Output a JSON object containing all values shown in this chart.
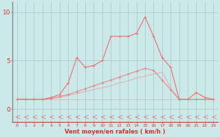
{
  "x_labels": [
    0,
    1,
    2,
    3,
    4,
    5,
    6,
    7,
    8,
    9,
    10,
    11,
    12,
    13,
    14,
    15,
    16,
    17,
    18,
    19,
    20,
    21,
    22,
    23
  ],
  "line1_y": [
    1.0,
    1.0,
    1.0,
    1.0,
    1.0,
    1.0,
    1.0,
    1.0,
    1.0,
    1.0,
    1.0,
    1.0,
    1.0,
    1.0,
    1.0,
    1.0,
    1.0,
    1.0,
    1.0,
    1.0,
    1.0,
    1.0,
    1.0,
    1.0
  ],
  "line2_y": [
    1.0,
    1.0,
    1.0,
    1.0,
    1.1,
    1.2,
    1.4,
    1.6,
    1.8,
    2.0,
    2.2,
    2.4,
    2.7,
    2.9,
    3.2,
    3.4,
    3.6,
    3.8,
    2.2,
    1.0,
    1.0,
    1.0,
    1.0,
    1.0
  ],
  "line3_y": [
    1.0,
    1.0,
    1.0,
    1.0,
    1.1,
    1.3,
    1.5,
    1.8,
    2.1,
    2.4,
    2.7,
    3.0,
    3.3,
    3.6,
    3.9,
    4.2,
    4.0,
    3.0,
    2.0,
    1.0,
    1.0,
    1.0,
    1.0,
    1.0
  ],
  "line4_y": [
    1.0,
    1.0,
    1.0,
    1.0,
    1.2,
    1.5,
    2.7,
    5.3,
    4.3,
    4.5,
    5.0,
    7.5,
    7.5,
    7.5,
    7.8,
    9.5,
    7.5,
    5.3,
    4.3,
    1.0,
    1.0,
    1.7,
    1.2,
    1.0
  ],
  "background_color": "#cce8e8",
  "grid_color": "#aacccc",
  "line_color": "#e87878",
  "line_color_light": "#e8a0a0",
  "xlabel": "Vent moyen/en rafales ( km/h )",
  "ylim": [
    -1.3,
    11.0
  ],
  "xlim": [
    -0.5,
    23.5
  ],
  "yticks": [
    0,
    5,
    10
  ],
  "label_color": "#cc3333",
  "figsize": [
    3.2,
    2.0
  ],
  "dpi": 100
}
